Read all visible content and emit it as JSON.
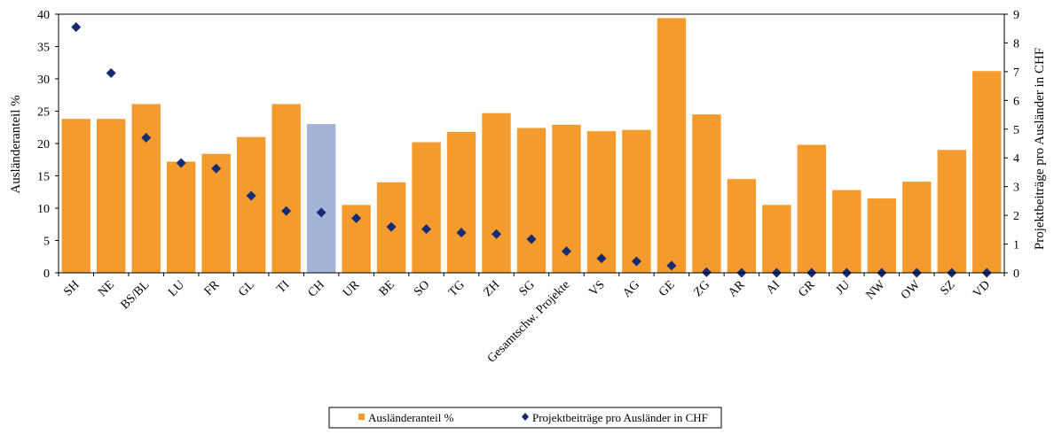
{
  "chart_data": {
    "type": "bar",
    "title": "",
    "xlabel": "",
    "ylabel": "Ausländeranteil %",
    "y2label": "Projektbeiträge pro Ausländer in CHF",
    "ylim": [
      0,
      40
    ],
    "y2lim": [
      0,
      9
    ],
    "yticks": [
      "0",
      "5",
      "10",
      "15",
      "20",
      "25",
      "30",
      "35",
      "40"
    ],
    "y2ticks": [
      "0",
      "1",
      "2",
      "3",
      "4",
      "5",
      "6",
      "7",
      "8",
      "9"
    ],
    "grid": false,
    "legend_position": "bottom",
    "colors": {
      "bar": "#F39B2D",
      "bar_highlight": "#A3B4D8",
      "marker": "#152B74"
    },
    "highlight_category": "CH",
    "categories": [
      "SH",
      "NE",
      "BS/BL",
      "LU",
      "FR",
      "GL",
      "TI",
      "CH",
      "UR",
      "BE",
      "SO",
      "TG",
      "ZH",
      "SG",
      "Gesamtschw. Projekte",
      "VS",
      "AG",
      "GE",
      "ZG",
      "AR",
      "AI",
      "GR",
      "JU",
      "NW",
      "OW",
      "SZ",
      "VD"
    ],
    "series": [
      {
        "name": "Ausländeranteil %",
        "kind": "bar",
        "axis": "left",
        "values": [
          23.8,
          23.8,
          26.1,
          17.2,
          18.4,
          21.0,
          26.1,
          23.0,
          10.5,
          14.0,
          20.2,
          21.8,
          24.7,
          22.4,
          22.9,
          21.9,
          22.1,
          39.4,
          24.5,
          14.5,
          10.5,
          19.8,
          12.8,
          11.5,
          14.1,
          19.0,
          31.2
        ]
      },
      {
        "name": "Projektbeiträge pro Ausländer in CHF",
        "kind": "scatter",
        "axis": "right",
        "values": [
          8.55,
          6.95,
          4.7,
          3.82,
          3.63,
          2.68,
          2.15,
          2.1,
          1.9,
          1.6,
          1.52,
          1.4,
          1.35,
          1.17,
          0.75,
          0.5,
          0.4,
          0.25,
          0.02,
          0.0,
          0.0,
          0.0,
          0.0,
          0.0,
          0.0,
          0.0,
          0.0
        ]
      }
    ]
  }
}
